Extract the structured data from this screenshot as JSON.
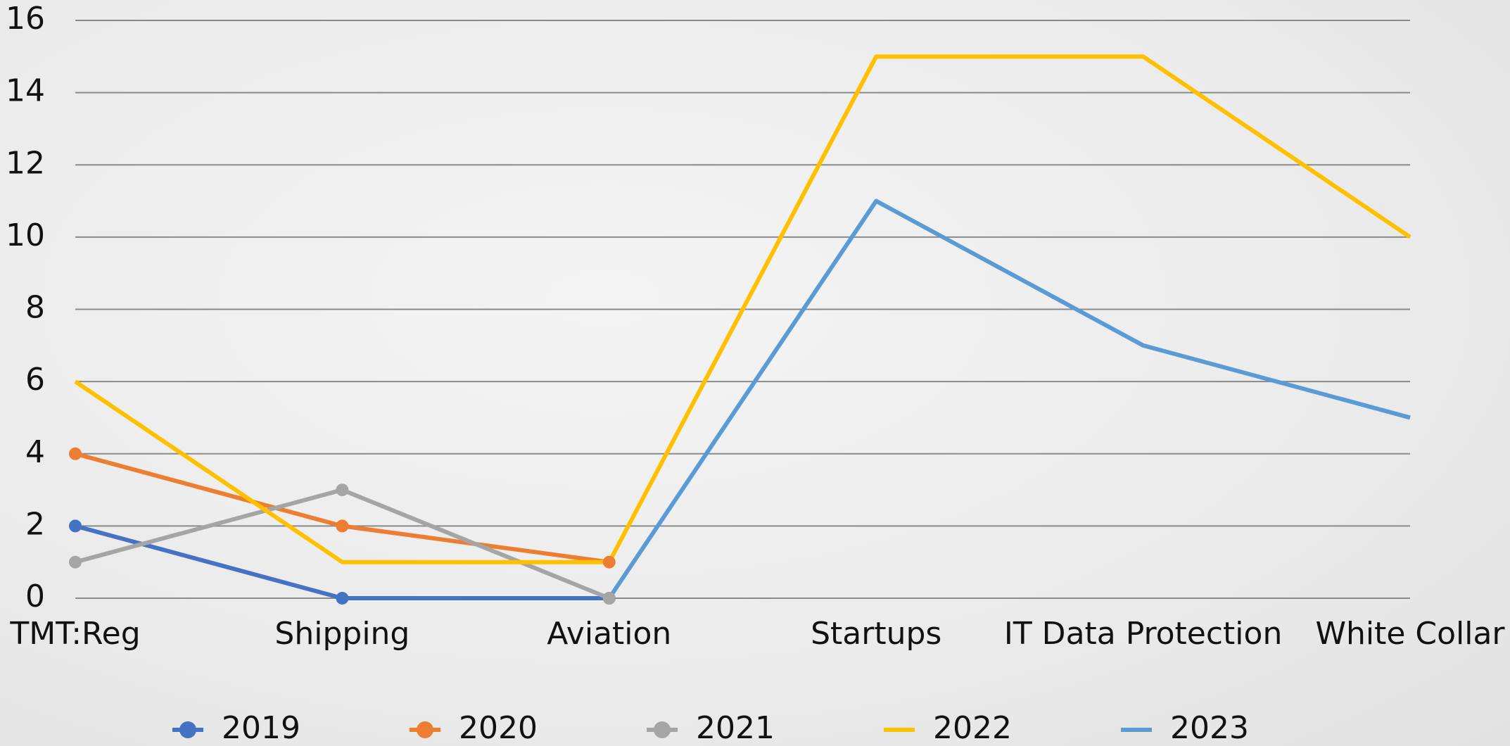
{
  "chart_data": {
    "type": "line",
    "categories": [
      "TMT:Reg",
      "Shipping",
      "Aviation",
      "Startups",
      "IT Data Protection",
      "White Collar"
    ],
    "series": [
      {
        "name": "2019",
        "color": "#4472c4",
        "marker": true,
        "values": [
          2,
          0,
          0,
          null,
          null,
          null
        ]
      },
      {
        "name": "2020",
        "color": "#ed7d31",
        "marker": true,
        "values": [
          4,
          2,
          1,
          null,
          null,
          null
        ]
      },
      {
        "name": "2021",
        "color": "#a5a5a5",
        "marker": true,
        "values": [
          1,
          3,
          0,
          null,
          null,
          null
        ]
      },
      {
        "name": "2022",
        "color": "#ffc000",
        "marker": false,
        "values": [
          6,
          1,
          1,
          15,
          15,
          10
        ]
      },
      {
        "name": "2023",
        "color": "#5b9bd5",
        "marker": false,
        "values": [
          null,
          null,
          0,
          11,
          7,
          5
        ]
      }
    ],
    "ylim": [
      0,
      16
    ],
    "yticks": [
      0,
      2,
      4,
      6,
      8,
      10,
      12,
      14,
      16
    ],
    "grid": true,
    "legend": "bottom"
  }
}
